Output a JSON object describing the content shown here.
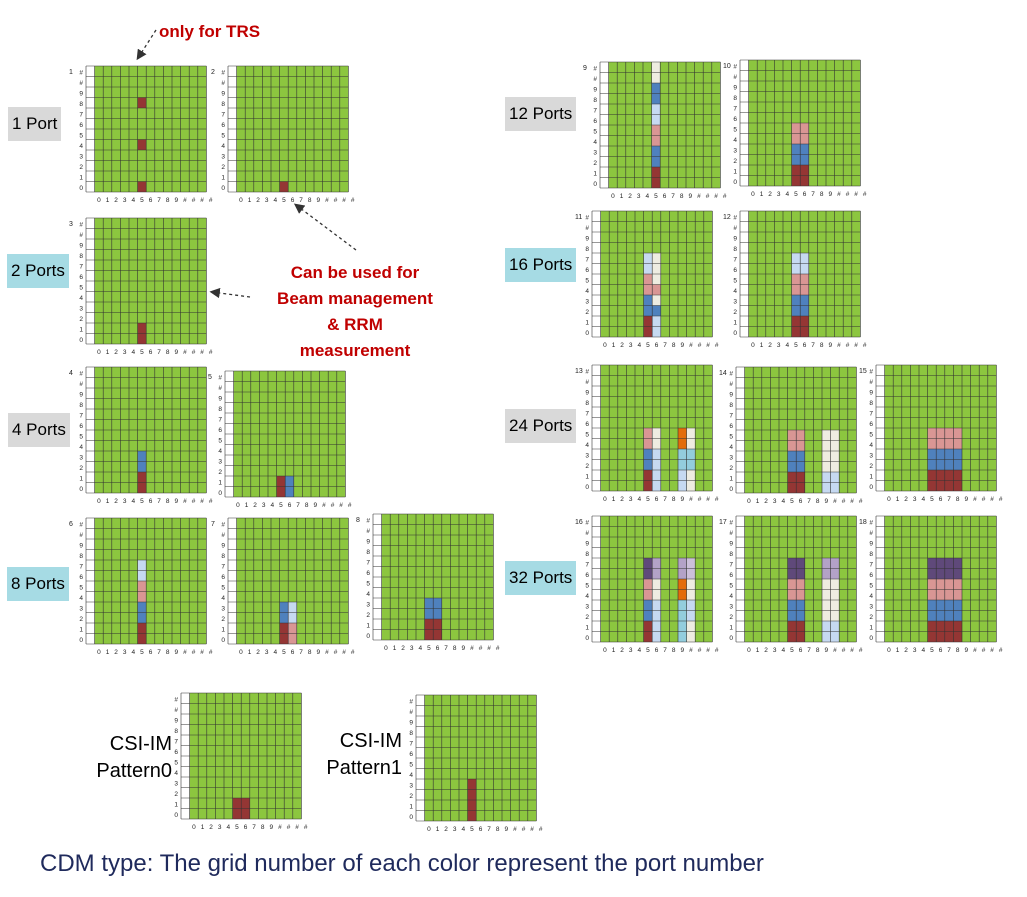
{
  "colors": {
    "green": "#8cc63f",
    "red": "#943634",
    "blue": "#4f81bd",
    "pink": "#d99694",
    "lightblue": "#c6d9f1",
    "cream": "#eeece1",
    "orange": "#e36c0a",
    "purple": "#5f497a",
    "lavender": "#b3a2c7",
    "teal": "#93cddd",
    "ltpurple": "#ccc0da"
  },
  "axis": {
    "x_ticks": [
      "0",
      "1",
      "2",
      "3",
      "4",
      "5",
      "6",
      "7",
      "8",
      "9",
      "#",
      "#",
      "#",
      "#"
    ],
    "y_ticks": [
      "#",
      "#",
      "9",
      "8",
      "7",
      "6",
      "5",
      "4",
      "3",
      "2",
      "1",
      "0"
    ]
  },
  "notes": {
    "trs": "only for TRS",
    "beam": [
      "Can be used for",
      "Beam management",
      "& RRM",
      "measurement"
    ]
  },
  "labels": {
    "p1": "1 Port",
    "p2": "2 Ports",
    "p4": "4 Ports",
    "p8": "8 Ports",
    "p12": "12 Ports",
    "p16": "16 Ports",
    "p24": "24 Ports",
    "p32": "32 Ports"
  },
  "csiim": {
    "p0": [
      "CSI-IM",
      "Pattern0"
    ],
    "p1": [
      "CSI-IM",
      "Pattern1"
    ]
  },
  "caption": "CDM type: The grid number of each color represent the port number",
  "grids": [
    {
      "id": "1",
      "cells": [
        [
          "red",
          5,
          0
        ],
        [
          "red",
          5,
          4
        ],
        [
          "red",
          5,
          8
        ]
      ]
    },
    {
      "id": "2",
      "cells": [
        [
          "red",
          5,
          0
        ]
      ]
    },
    {
      "id": "3",
      "cells": [
        [
          "red",
          5,
          0
        ],
        [
          "red",
          5,
          1
        ]
      ]
    },
    {
      "id": "4",
      "cells": [
        [
          "red",
          5,
          0
        ],
        [
          "red",
          5,
          1
        ],
        [
          "blue",
          5,
          2
        ],
        [
          "blue",
          5,
          3
        ]
      ]
    },
    {
      "id": "5",
      "cells": [
        [
          "red",
          5,
          0
        ],
        [
          "red",
          5,
          1
        ],
        [
          "blue",
          6,
          0
        ],
        [
          "blue",
          6,
          1
        ]
      ]
    },
    {
      "id": "6",
      "cells": [
        [
          "red",
          5,
          0
        ],
        [
          "red",
          5,
          1
        ],
        [
          "blue",
          5,
          2
        ],
        [
          "blue",
          5,
          3
        ],
        [
          "pink",
          5,
          4
        ],
        [
          "pink",
          5,
          5
        ],
        [
          "lightblue",
          5,
          6
        ],
        [
          "lightblue",
          5,
          7
        ]
      ]
    },
    {
      "id": "7",
      "cells": [
        [
          "red",
          5,
          0
        ],
        [
          "red",
          5,
          1
        ],
        [
          "pink",
          6,
          0
        ],
        [
          "pink",
          6,
          1
        ],
        [
          "blue",
          5,
          2
        ],
        [
          "blue",
          5,
          3
        ],
        [
          "lightblue",
          6,
          2
        ],
        [
          "lightblue",
          6,
          3
        ]
      ]
    },
    {
      "id": "8",
      "cells": [
        [
          "red",
          5,
          0
        ],
        [
          "red",
          5,
          1
        ],
        [
          "red",
          6,
          0
        ],
        [
          "red",
          6,
          1
        ],
        [
          "blue",
          5,
          2
        ],
        [
          "blue",
          5,
          3
        ],
        [
          "blue",
          6,
          2
        ],
        [
          "blue",
          6,
          3
        ]
      ]
    },
    {
      "id": "9",
      "cells": [
        [
          "red",
          5,
          0
        ],
        [
          "red",
          5,
          1
        ],
        [
          "blue",
          5,
          2
        ],
        [
          "blue",
          5,
          3
        ],
        [
          "pink",
          5,
          4
        ],
        [
          "pink",
          5,
          5
        ],
        [
          "lightblue",
          5,
          6
        ],
        [
          "lightblue",
          5,
          7
        ],
        [
          "blue",
          5,
          8
        ],
        [
          "blue",
          5,
          9
        ],
        [
          "cream",
          5,
          10
        ],
        [
          "cream",
          5,
          11
        ]
      ]
    },
    {
      "id": "10",
      "cells": [
        [
          "red",
          5,
          0
        ],
        [
          "red",
          5,
          1
        ],
        [
          "red",
          6,
          0
        ],
        [
          "red",
          6,
          1
        ],
        [
          "blue",
          5,
          2
        ],
        [
          "blue",
          5,
          3
        ],
        [
          "blue",
          6,
          2
        ],
        [
          "blue",
          6,
          3
        ],
        [
          "pink",
          5,
          4
        ],
        [
          "pink",
          5,
          5
        ],
        [
          "pink",
          6,
          4
        ],
        [
          "pink",
          6,
          5
        ]
      ]
    },
    {
      "id": "11",
      "cells": [
        [
          "red",
          5,
          0
        ],
        [
          "red",
          5,
          1
        ],
        [
          "blue",
          5,
          2
        ],
        [
          "blue",
          5,
          3
        ],
        [
          "pink",
          5,
          4
        ],
        [
          "pink",
          5,
          5
        ],
        [
          "lightblue",
          5,
          6
        ],
        [
          "lightblue",
          5,
          7
        ],
        [
          "lightblue",
          6,
          0
        ],
        [
          "lightblue",
          6,
          1
        ],
        [
          "blue",
          6,
          2
        ],
        [
          "cream",
          6,
          3
        ],
        [
          "pink",
          6,
          4
        ],
        [
          "cream",
          6,
          5
        ],
        [
          "cream",
          6,
          6
        ],
        [
          "cream",
          6,
          7
        ]
      ]
    },
    {
      "id": "12",
      "cells": [
        [
          "red",
          5,
          0
        ],
        [
          "red",
          5,
          1
        ],
        [
          "red",
          6,
          0
        ],
        [
          "red",
          6,
          1
        ],
        [
          "blue",
          5,
          2
        ],
        [
          "blue",
          5,
          3
        ],
        [
          "blue",
          6,
          2
        ],
        [
          "blue",
          6,
          3
        ],
        [
          "pink",
          5,
          4
        ],
        [
          "pink",
          5,
          5
        ],
        [
          "pink",
          6,
          4
        ],
        [
          "pink",
          6,
          5
        ],
        [
          "lightblue",
          5,
          6
        ],
        [
          "lightblue",
          5,
          7
        ],
        [
          "lightblue",
          6,
          6
        ],
        [
          "lightblue",
          6,
          7
        ]
      ]
    },
    {
      "id": "13",
      "cells": [
        [
          "red",
          5,
          0
        ],
        [
          "red",
          5,
          1
        ],
        [
          "blue",
          5,
          2
        ],
        [
          "blue",
          5,
          3
        ],
        [
          "pink",
          5,
          4
        ],
        [
          "pink",
          5,
          5
        ],
        [
          "lightblue",
          6,
          0
        ],
        [
          "lightblue",
          6,
          1
        ],
        [
          "lightblue",
          6,
          2
        ],
        [
          "lightblue",
          6,
          3
        ],
        [
          "cream",
          6,
          4
        ],
        [
          "cream",
          6,
          5
        ],
        [
          "lightblue",
          9,
          0
        ],
        [
          "lightblue",
          9,
          1
        ],
        [
          "teal",
          9,
          2
        ],
        [
          "teal",
          9,
          3
        ],
        [
          "orange",
          9,
          4
        ],
        [
          "orange",
          9,
          5
        ],
        [
          "cream",
          10,
          0
        ],
        [
          "cream",
          10,
          1
        ],
        [
          "teal",
          10,
          2
        ],
        [
          "teal",
          10,
          3
        ],
        [
          "cream",
          10,
          4
        ],
        [
          "cream",
          10,
          5
        ]
      ]
    },
    {
      "id": "14",
      "cells": [
        [
          "red",
          5,
          0
        ],
        [
          "red",
          5,
          1
        ],
        [
          "red",
          6,
          0
        ],
        [
          "red",
          6,
          1
        ],
        [
          "blue",
          5,
          2
        ],
        [
          "blue",
          5,
          3
        ],
        [
          "blue",
          6,
          2
        ],
        [
          "blue",
          6,
          3
        ],
        [
          "pink",
          5,
          4
        ],
        [
          "pink",
          5,
          5
        ],
        [
          "pink",
          6,
          4
        ],
        [
          "pink",
          6,
          5
        ],
        [
          "lightblue",
          9,
          0
        ],
        [
          "lightblue",
          9,
          1
        ],
        [
          "cream",
          9,
          2
        ],
        [
          "cream",
          9,
          3
        ],
        [
          "cream",
          9,
          4
        ],
        [
          "cream",
          9,
          5
        ],
        [
          "lightblue",
          10,
          0
        ],
        [
          "lightblue",
          10,
          1
        ],
        [
          "cream",
          10,
          2
        ],
        [
          "cream",
          10,
          3
        ],
        [
          "cream",
          10,
          4
        ],
        [
          "cream",
          10,
          5
        ]
      ]
    },
    {
      "id": "15",
      "cells": [
        [
          "red",
          5,
          0
        ],
        [
          "red",
          5,
          1
        ],
        [
          "red",
          6,
          0
        ],
        [
          "red",
          6,
          1
        ],
        [
          "red",
          7,
          0
        ],
        [
          "red",
          7,
          1
        ],
        [
          "red",
          8,
          0
        ],
        [
          "red",
          8,
          1
        ],
        [
          "blue",
          5,
          2
        ],
        [
          "blue",
          5,
          3
        ],
        [
          "blue",
          6,
          2
        ],
        [
          "blue",
          6,
          3
        ],
        [
          "blue",
          7,
          2
        ],
        [
          "blue",
          7,
          3
        ],
        [
          "blue",
          8,
          2
        ],
        [
          "blue",
          8,
          3
        ],
        [
          "pink",
          5,
          4
        ],
        [
          "pink",
          5,
          5
        ],
        [
          "pink",
          6,
          4
        ],
        [
          "pink",
          6,
          5
        ],
        [
          "pink",
          7,
          4
        ],
        [
          "pink",
          7,
          5
        ],
        [
          "pink",
          8,
          4
        ],
        [
          "pink",
          8,
          5
        ]
      ]
    },
    {
      "id": "16",
      "cells": [
        [
          "red",
          5,
          0
        ],
        [
          "red",
          5,
          1
        ],
        [
          "blue",
          5,
          2
        ],
        [
          "blue",
          5,
          3
        ],
        [
          "pink",
          5,
          4
        ],
        [
          "pink",
          5,
          5
        ],
        [
          "purple",
          5,
          6
        ],
        [
          "purple",
          5,
          7
        ],
        [
          "lightblue",
          6,
          0
        ],
        [
          "lightblue",
          6,
          1
        ],
        [
          "lightblue",
          6,
          2
        ],
        [
          "lightblue",
          6,
          3
        ],
        [
          "cream",
          6,
          4
        ],
        [
          "cream",
          6,
          5
        ],
        [
          "lavender",
          6,
          6
        ],
        [
          "lavender",
          6,
          7
        ],
        [
          "teal",
          9,
          0
        ],
        [
          "teal",
          9,
          1
        ],
        [
          "teal",
          9,
          2
        ],
        [
          "teal",
          9,
          3
        ],
        [
          "orange",
          9,
          4
        ],
        [
          "orange",
          9,
          5
        ],
        [
          "lavender",
          9,
          6
        ],
        [
          "lavender",
          9,
          7
        ],
        [
          "cream",
          10,
          0
        ],
        [
          "cream",
          10,
          1
        ],
        [
          "lightblue",
          10,
          2
        ],
        [
          "lightblue",
          10,
          3
        ],
        [
          "cream",
          10,
          4
        ],
        [
          "cream",
          10,
          5
        ],
        [
          "ltpurple",
          10,
          6
        ],
        [
          "ltpurple",
          10,
          7
        ]
      ]
    },
    {
      "id": "17",
      "cells": [
        [
          "red",
          5,
          0
        ],
        [
          "red",
          5,
          1
        ],
        [
          "red",
          6,
          0
        ],
        [
          "red",
          6,
          1
        ],
        [
          "blue",
          5,
          2
        ],
        [
          "blue",
          5,
          3
        ],
        [
          "blue",
          6,
          2
        ],
        [
          "blue",
          6,
          3
        ],
        [
          "pink",
          5,
          4
        ],
        [
          "pink",
          5,
          5
        ],
        [
          "pink",
          6,
          4
        ],
        [
          "pink",
          6,
          5
        ],
        [
          "purple",
          5,
          6
        ],
        [
          "purple",
          5,
          7
        ],
        [
          "purple",
          6,
          6
        ],
        [
          "purple",
          6,
          7
        ],
        [
          "lightblue",
          9,
          0
        ],
        [
          "lightblue",
          9,
          1
        ],
        [
          "cream",
          9,
          2
        ],
        [
          "cream",
          9,
          3
        ],
        [
          "cream",
          9,
          4
        ],
        [
          "cream",
          9,
          5
        ],
        [
          "lavender",
          9,
          6
        ],
        [
          "lavender",
          9,
          7
        ],
        [
          "lightblue",
          10,
          0
        ],
        [
          "lightblue",
          10,
          1
        ],
        [
          "cream",
          10,
          2
        ],
        [
          "cream",
          10,
          3
        ],
        [
          "cream",
          10,
          4
        ],
        [
          "cream",
          10,
          5
        ],
        [
          "lavender",
          10,
          6
        ],
        [
          "lavender",
          10,
          7
        ]
      ]
    },
    {
      "id": "18",
      "cells": [
        [
          "red",
          5,
          0
        ],
        [
          "red",
          5,
          1
        ],
        [
          "red",
          6,
          0
        ],
        [
          "red",
          6,
          1
        ],
        [
          "red",
          7,
          0
        ],
        [
          "red",
          7,
          1
        ],
        [
          "red",
          8,
          0
        ],
        [
          "red",
          8,
          1
        ],
        [
          "blue",
          5,
          2
        ],
        [
          "blue",
          5,
          3
        ],
        [
          "blue",
          6,
          2
        ],
        [
          "blue",
          6,
          3
        ],
        [
          "blue",
          7,
          2
        ],
        [
          "blue",
          7,
          3
        ],
        [
          "blue",
          8,
          2
        ],
        [
          "blue",
          8,
          3
        ],
        [
          "pink",
          5,
          4
        ],
        [
          "pink",
          5,
          5
        ],
        [
          "pink",
          6,
          4
        ],
        [
          "pink",
          6,
          5
        ],
        [
          "pink",
          7,
          4
        ],
        [
          "pink",
          7,
          5
        ],
        [
          "pink",
          8,
          4
        ],
        [
          "pink",
          8,
          5
        ],
        [
          "purple",
          5,
          6
        ],
        [
          "purple",
          5,
          7
        ],
        [
          "purple",
          6,
          6
        ],
        [
          "purple",
          6,
          7
        ],
        [
          "purple",
          7,
          6
        ],
        [
          "purple",
          7,
          7
        ],
        [
          "purple",
          8,
          6
        ],
        [
          "purple",
          8,
          7
        ]
      ]
    },
    {
      "id": "",
      "cells": [
        [
          "red",
          5,
          0
        ],
        [
          "red",
          5,
          1
        ],
        [
          "red",
          6,
          0
        ],
        [
          "red",
          6,
          1
        ]
      ]
    },
    {
      "id": "",
      "cells": [
        [
          "red",
          5,
          0
        ],
        [
          "red",
          5,
          1
        ],
        [
          "red",
          5,
          2
        ],
        [
          "red",
          5,
          3
        ]
      ]
    }
  ]
}
